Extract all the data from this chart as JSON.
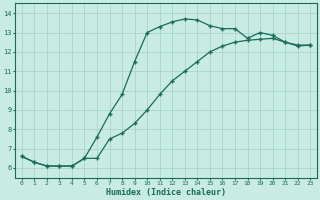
{
  "xlabel": "Humidex (Indice chaleur)",
  "bg_color": "#c8ebe3",
  "line_color": "#1a6b5a",
  "grid_color": "#a8d4cc",
  "xlim": [
    -0.5,
    23.5
  ],
  "ylim": [
    5.5,
    14.5
  ],
  "xticks": [
    0,
    1,
    2,
    3,
    4,
    5,
    6,
    7,
    8,
    9,
    10,
    11,
    12,
    13,
    14,
    15,
    16,
    17,
    18,
    19,
    20,
    21,
    22,
    23
  ],
  "yticks": [
    6,
    7,
    8,
    9,
    10,
    11,
    12,
    13,
    14
  ],
  "upper_x": [
    0,
    1,
    2,
    3,
    4,
    5,
    6,
    7,
    8,
    9,
    10,
    11,
    12,
    13,
    14,
    15,
    16,
    17,
    18,
    19,
    20,
    21,
    22,
    23
  ],
  "upper_y": [
    6.6,
    6.3,
    6.1,
    6.1,
    6.1,
    6.5,
    7.6,
    8.8,
    9.8,
    11.5,
    13.0,
    13.3,
    13.55,
    13.7,
    13.65,
    13.35,
    13.2,
    13.2,
    12.7,
    13.0,
    12.85,
    12.5,
    12.35,
    12.35
  ],
  "lower_x": [
    0,
    1,
    2,
    3,
    4,
    5,
    6,
    7,
    8,
    9,
    10,
    11,
    12,
    13,
    14,
    15,
    16,
    17,
    18,
    19,
    20,
    21,
    22,
    23
  ],
  "lower_y": [
    6.6,
    6.3,
    6.1,
    6.1,
    6.1,
    6.5,
    6.5,
    7.5,
    7.8,
    8.3,
    9.0,
    9.8,
    10.5,
    11.0,
    11.5,
    12.0,
    12.3,
    12.5,
    12.6,
    12.65,
    12.7,
    12.5,
    12.3,
    12.35
  ]
}
